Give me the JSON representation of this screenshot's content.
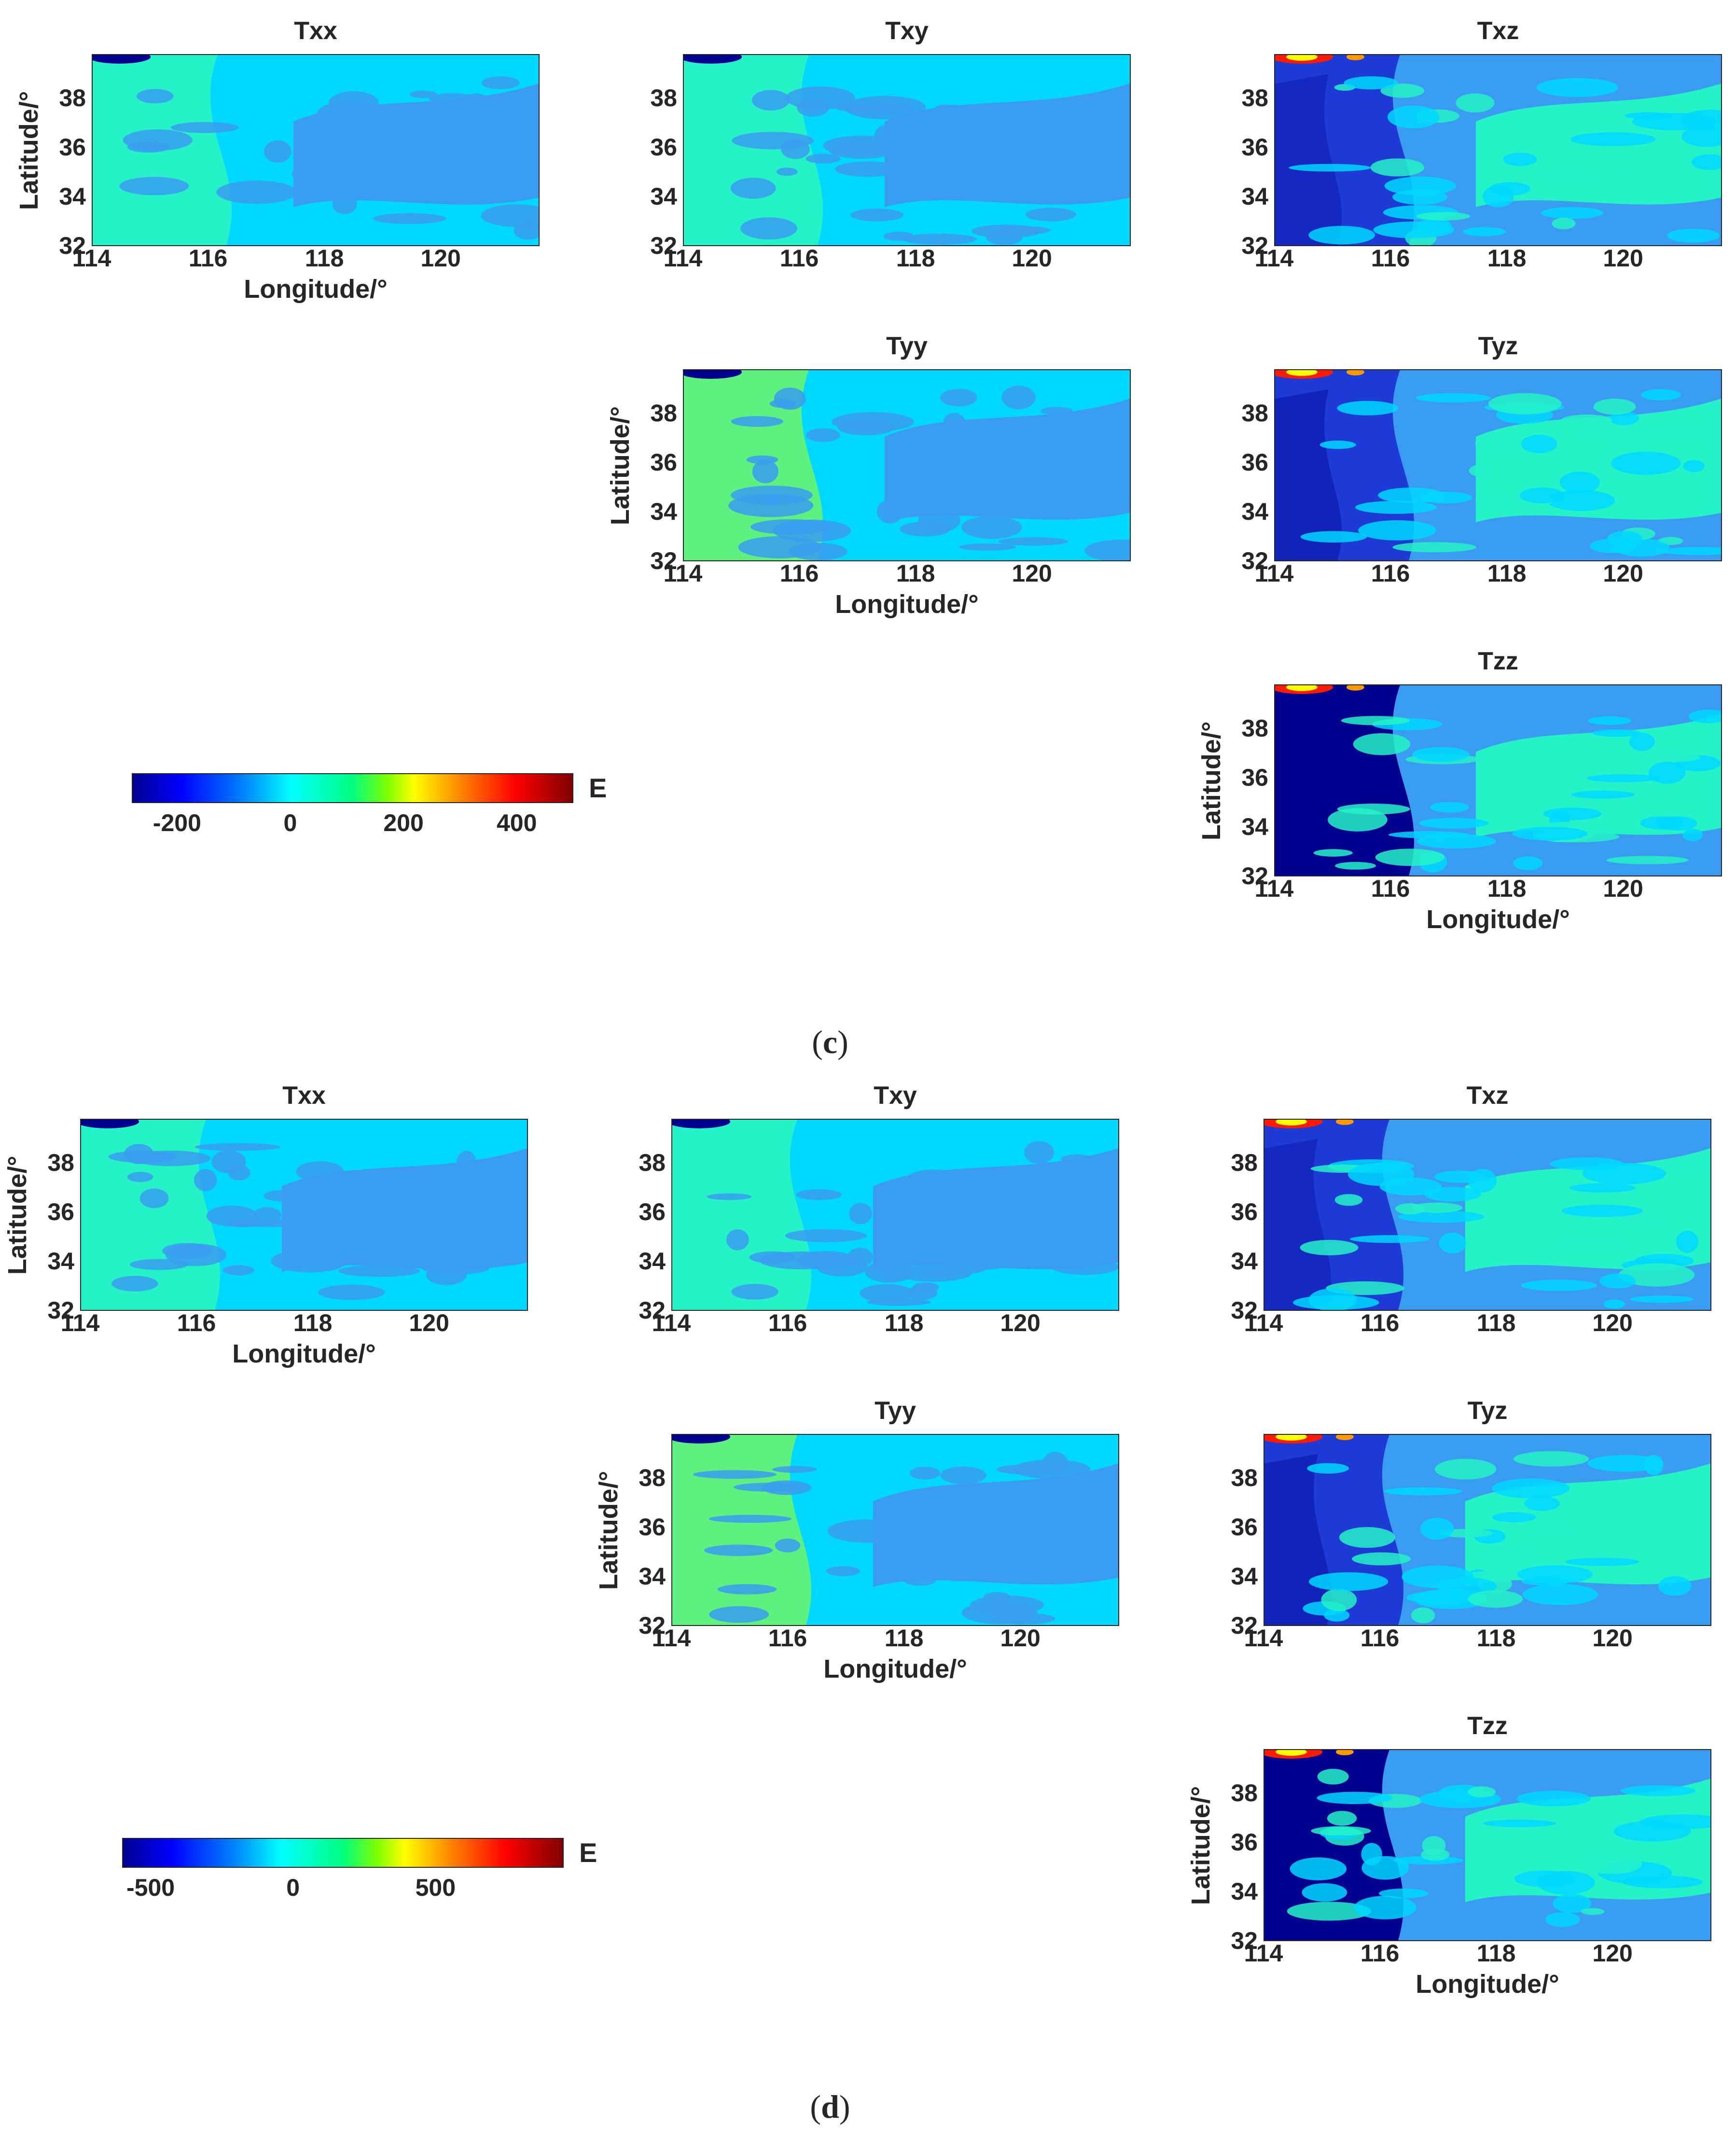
{
  "figure_labels": [
    {
      "open": "(",
      "letter": "c",
      "close": ")"
    },
    {
      "open": "(",
      "letter": "d",
      "close": ")"
    }
  ],
  "colors": {
    "darkblue": "#00008f",
    "blue": "#1f3bd6",
    "midblue": "#2a70e6",
    "lightblue": "#3a9cf0",
    "cyan": "#00d8ff",
    "teal": "#26f2c8",
    "green": "#5df280",
    "yellow": "#ffff00",
    "orange": "#ff9900",
    "red": "#ff1a00"
  },
  "chart_data": [
    {
      "group": "c",
      "type": "heatmap",
      "colorbar": {
        "ticks": [
          "-200",
          "0",
          "200",
          "400"
        ],
        "unit": "E",
        "range": [
          -280,
          500
        ]
      },
      "panels": [
        {
          "title": "Txx",
          "xlabel": "Longitude/°",
          "ylabel": "Latitude/°",
          "xticks": [
            "114",
            "116",
            "118",
            "120"
          ],
          "yticks": [
            "38",
            "36",
            "34",
            "32"
          ],
          "xlim": [
            114,
            121.7
          ],
          "ylim": [
            32,
            39.8
          ],
          "pattern": "txx"
        },
        {
          "title": "Txy",
          "xlabel": "",
          "ylabel": "",
          "xticks": [
            "114",
            "116",
            "118",
            "120"
          ],
          "yticks": [
            "38",
            "36",
            "34",
            "32"
          ],
          "xlim": [
            114,
            121.7
          ],
          "ylim": [
            32,
            39.8
          ],
          "pattern": "txy"
        },
        {
          "title": "Txz",
          "xlabel": "",
          "ylabel": "",
          "xticks": [
            "114",
            "116",
            "118",
            "120"
          ],
          "yticks": [
            "38",
            "36",
            "34",
            "32"
          ],
          "xlim": [
            114,
            121.7
          ],
          "ylim": [
            32,
            39.8
          ],
          "pattern": "txz"
        },
        {
          "title": "Tyy",
          "xlabel": "Longitude/°",
          "ylabel": "Latitude/°",
          "xticks": [
            "114",
            "116",
            "118",
            "120"
          ],
          "yticks": [
            "38",
            "36",
            "34",
            "32"
          ],
          "xlim": [
            114,
            121.7
          ],
          "ylim": [
            32,
            39.8
          ],
          "pattern": "tyy"
        },
        {
          "title": "Tyz",
          "xlabel": "",
          "ylabel": "",
          "xticks": [
            "114",
            "116",
            "118",
            "120"
          ],
          "yticks": [
            "38",
            "36",
            "34",
            "32"
          ],
          "xlim": [
            114,
            121.7
          ],
          "ylim": [
            32,
            39.8
          ],
          "pattern": "tyz"
        },
        {
          "title": "Tzz",
          "xlabel": "Longitude/°",
          "ylabel": "Latitude/°",
          "xticks": [
            "114",
            "116",
            "118",
            "120"
          ],
          "yticks": [
            "38",
            "36",
            "34",
            "32"
          ],
          "xlim": [
            114,
            121.7
          ],
          "ylim": [
            32,
            39.8
          ],
          "pattern": "tzz"
        }
      ]
    },
    {
      "group": "d",
      "type": "heatmap",
      "colorbar": {
        "ticks": [
          "-500",
          "0",
          "500"
        ],
        "unit": "E",
        "range": [
          -600,
          950
        ]
      },
      "panels": [
        {
          "title": "Txx",
          "xlabel": "Longitude/°",
          "ylabel": "Latitude/°",
          "xticks": [
            "114",
            "116",
            "118",
            "120"
          ],
          "yticks": [
            "38",
            "36",
            "34",
            "32"
          ],
          "xlim": [
            114,
            121.7
          ],
          "ylim": [
            32,
            39.8
          ],
          "pattern": "txx"
        },
        {
          "title": "Txy",
          "xlabel": "",
          "ylabel": "",
          "xticks": [
            "114",
            "116",
            "118",
            "120"
          ],
          "yticks": [
            "38",
            "36",
            "34",
            "32"
          ],
          "xlim": [
            114,
            121.7
          ],
          "ylim": [
            32,
            39.8
          ],
          "pattern": "txy"
        },
        {
          "title": "Txz",
          "xlabel": "",
          "ylabel": "",
          "xticks": [
            "114",
            "116",
            "118",
            "120"
          ],
          "yticks": [
            "38",
            "36",
            "34",
            "32"
          ],
          "xlim": [
            114,
            121.7
          ],
          "ylim": [
            32,
            39.8
          ],
          "pattern": "txz"
        },
        {
          "title": "Tyy",
          "xlabel": "Longitude/°",
          "ylabel": "Latitude/°",
          "xticks": [
            "114",
            "116",
            "118",
            "120"
          ],
          "yticks": [
            "38",
            "36",
            "34",
            "32"
          ],
          "xlim": [
            114,
            121.7
          ],
          "ylim": [
            32,
            39.8
          ],
          "pattern": "tyy"
        },
        {
          "title": "Tyz",
          "xlabel": "",
          "ylabel": "",
          "xticks": [
            "114",
            "116",
            "118",
            "120"
          ],
          "yticks": [
            "38",
            "36",
            "34",
            "32"
          ],
          "xlim": [
            114,
            121.7
          ],
          "ylim": [
            32,
            39.8
          ],
          "pattern": "tyz"
        },
        {
          "title": "Tzz",
          "xlabel": "Longitude/°",
          "ylabel": "Latitude/°",
          "xticks": [
            "114",
            "116",
            "118",
            "120"
          ],
          "yticks": [
            "38",
            "36",
            "34",
            "32"
          ],
          "xlim": [
            114,
            121.7
          ],
          "ylim": [
            32,
            39.8
          ],
          "pattern": "tzz"
        }
      ]
    }
  ]
}
